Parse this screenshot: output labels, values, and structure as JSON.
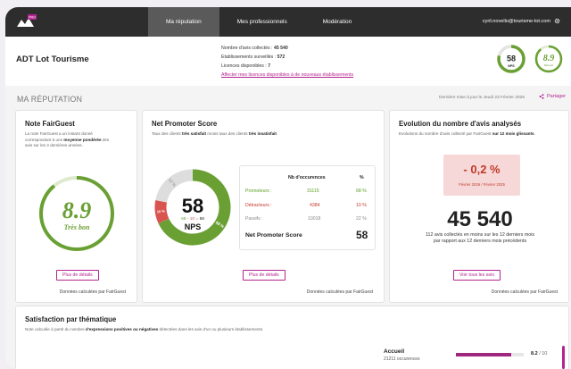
{
  "nav": {
    "logo_label": "PRO",
    "items": [
      {
        "label": "Ma réputation",
        "active": true
      },
      {
        "label": "Mes professionnels",
        "active": false
      },
      {
        "label": "Modération",
        "active": false
      }
    ],
    "user_email": "cyril.novello@tourisme-lot.com"
  },
  "header": {
    "org_name": "ADT Lot Tourisme",
    "stats": [
      {
        "label": "Nombre d'avis collectés :",
        "value": "45 540"
      },
      {
        "label": "Etablissements surveillés :",
        "value": "572"
      },
      {
        "label": "Licences disponibles :",
        "value": "7"
      }
    ],
    "link_text": "Affecter mes licences disponibles à de nouveaux établissements",
    "nps_badge": {
      "value": "58",
      "label": "NPS",
      "progress": 0.79
    },
    "score_badge": {
      "value": "8.9",
      "label": "Réussie",
      "progress": 0.89
    }
  },
  "section": {
    "title": "MA RÉPUTATION",
    "updated": "Dernière mise à jour le Jeudi 23 Février 2026",
    "share_label": "Partager"
  },
  "fairguest": {
    "title": "Note FairGuest",
    "desc_1": "La note FairGuest a un instant donné",
    "desc_2a": "correspondant à une ",
    "desc_2b": "moyenne pondérée",
    "desc_2c": " des",
    "desc_3": "avis sur les 3 dernières années.",
    "score": "8.9",
    "score_label": "Très bon",
    "progress": 0.89,
    "button": "Plus de détails",
    "footnote": "Données calculées par FairGuest"
  },
  "nps": {
    "title": "Net Promoter Score",
    "desc_a": "Taux des clients ",
    "desc_b": "très satisfait",
    "desc_c": " moins taux des clients ",
    "desc_d": "très insatisfait",
    "desc_e": ".",
    "value": "58",
    "label": "NPS",
    "formula_promo": "68",
    "formula_minus": "-",
    "formula_detract": "10",
    "formula_equals": "=",
    "formula_result": "58",
    "promoters_pct": 68,
    "passives_pct": 22,
    "detractors_pct": 10,
    "promoters_arc_label": "68 %",
    "passives_arc_label": "22 %",
    "detractors_arc_label": "10 %",
    "col_occurrences": "Nb d'occurences",
    "col_pct": "%",
    "rows": [
      {
        "label": "Promoteurs :",
        "count": "31115",
        "pct": "68 %"
      },
      {
        "label": "Détracteurs :",
        "count": "4384",
        "pct": "10 %"
      },
      {
        "label": "Passifs :",
        "count": "10018",
        "pct": "22 %"
      }
    ],
    "total_label": "Net Promoter Score",
    "total_value": "58",
    "button": "Plus de détails",
    "footnote": "Données calculées par FairGuest"
  },
  "evolution": {
    "title": "Evolution du nombre d'avis analysés",
    "desc_a": "Evolutions du nombre d'avis collecté par FairGuest ",
    "desc_b": "sur 12 mois glissants",
    "desc_c": ".",
    "change": "- 0,2 %",
    "period": "Février 2026 / Février 2025",
    "total": "45 540",
    "total_desc_1": "112 avis collectés en moins sur les 12 derniers mois",
    "total_desc_2": "par rapport aux 12 derniers mois précédents",
    "button": "Voir tous les avis",
    "footnote": "Données calculées par FairGuest"
  },
  "themes": {
    "title": "Satisfaction par thématique",
    "desc_a": "Note calculée à partir du nombre ",
    "desc_b": "d'expressions positives ou négatives",
    "desc_c": " détectées dans les avis d'un ou plusieurs établissements.",
    "first": {
      "name": "Accueil",
      "count": "21211 occurences",
      "score": "8.2",
      "max": "/ 10",
      "progress": 0.82
    }
  },
  "colors": {
    "accent": "#b4248f",
    "green": "#6aa033",
    "red": "#d9534f"
  }
}
